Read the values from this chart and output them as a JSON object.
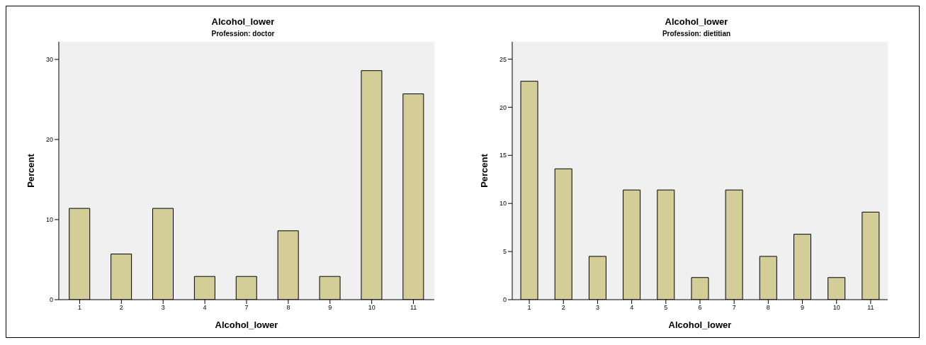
{
  "chart_data": [
    {
      "type": "bar",
      "title": "Alcohol_lower",
      "subtitle": "Profession: doctor",
      "xlabel": "Alcohol_lower",
      "ylabel": "Percent",
      "categories": [
        "1",
        "2",
        "3",
        "4",
        "7",
        "8",
        "9",
        "10",
        "11"
      ],
      "values": [
        11.4,
        5.7,
        11.4,
        2.9,
        2.9,
        8.6,
        2.9,
        28.6,
        25.7
      ],
      "color": "#d3ce97",
      "ylim": [
        0,
        32.2
      ],
      "yticks": [
        0,
        10,
        20,
        30
      ],
      "grid": false
    },
    {
      "type": "bar",
      "title": "Alcohol_lower",
      "subtitle": "Profession: dietitian",
      "xlabel": "Alcohol_lower",
      "ylabel": "Percent",
      "categories": [
        "1",
        "2",
        "3",
        "4",
        "5",
        "6",
        "7",
        "8",
        "9",
        "10",
        "11"
      ],
      "values": [
        22.7,
        13.6,
        4.5,
        11.4,
        11.4,
        2.3,
        11.4,
        4.5,
        6.8,
        2.3,
        9.1
      ],
      "color": "#d3ce97",
      "ylim": [
        0,
        26.8
      ],
      "yticks": [
        0,
        5,
        10,
        15,
        20,
        25
      ],
      "grid": false
    }
  ]
}
